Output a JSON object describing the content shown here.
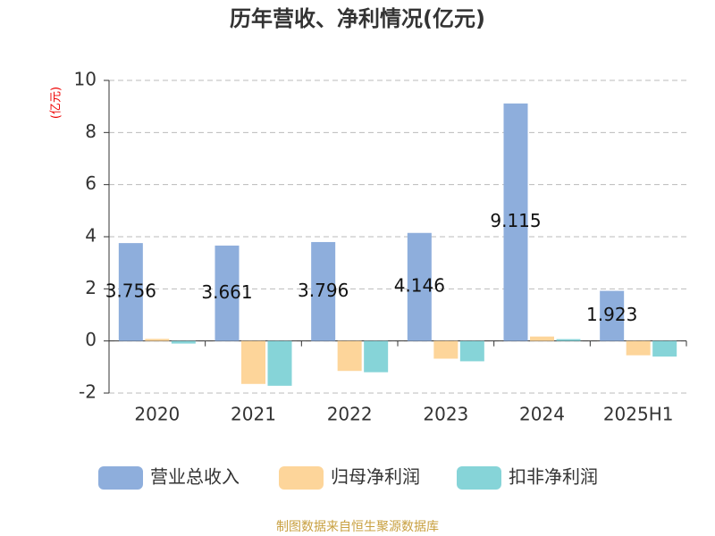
{
  "chart_data": {
    "type": "bar",
    "title": "历年营收、净利情况(亿元)",
    "y_unit_label": "(亿元)",
    "source": "制图数据来自恒生聚源数据库",
    "categories": [
      "2020",
      "2021",
      "2022",
      "2023",
      "2024",
      "2025H1"
    ],
    "series": [
      {
        "name": "营业总收入",
        "color": "#8eaedc",
        "values": [
          3.756,
          3.661,
          3.796,
          4.146,
          9.115,
          1.923
        ],
        "data_labels": true
      },
      {
        "name": "归母净利润",
        "color": "#fdd59a",
        "values": [
          0.08,
          -1.65,
          -1.15,
          -0.68,
          0.17,
          -0.55
        ],
        "data_labels": false
      },
      {
        "name": "扣非净利润",
        "color": "#86d4d8",
        "values": [
          -0.1,
          -1.72,
          -1.2,
          -0.78,
          0.07,
          -0.6
        ],
        "data_labels": false
      }
    ],
    "ylim": [
      -2,
      10
    ],
    "yticks": [
      -2,
      0,
      2,
      4,
      6,
      8,
      10
    ],
    "grid": true
  }
}
